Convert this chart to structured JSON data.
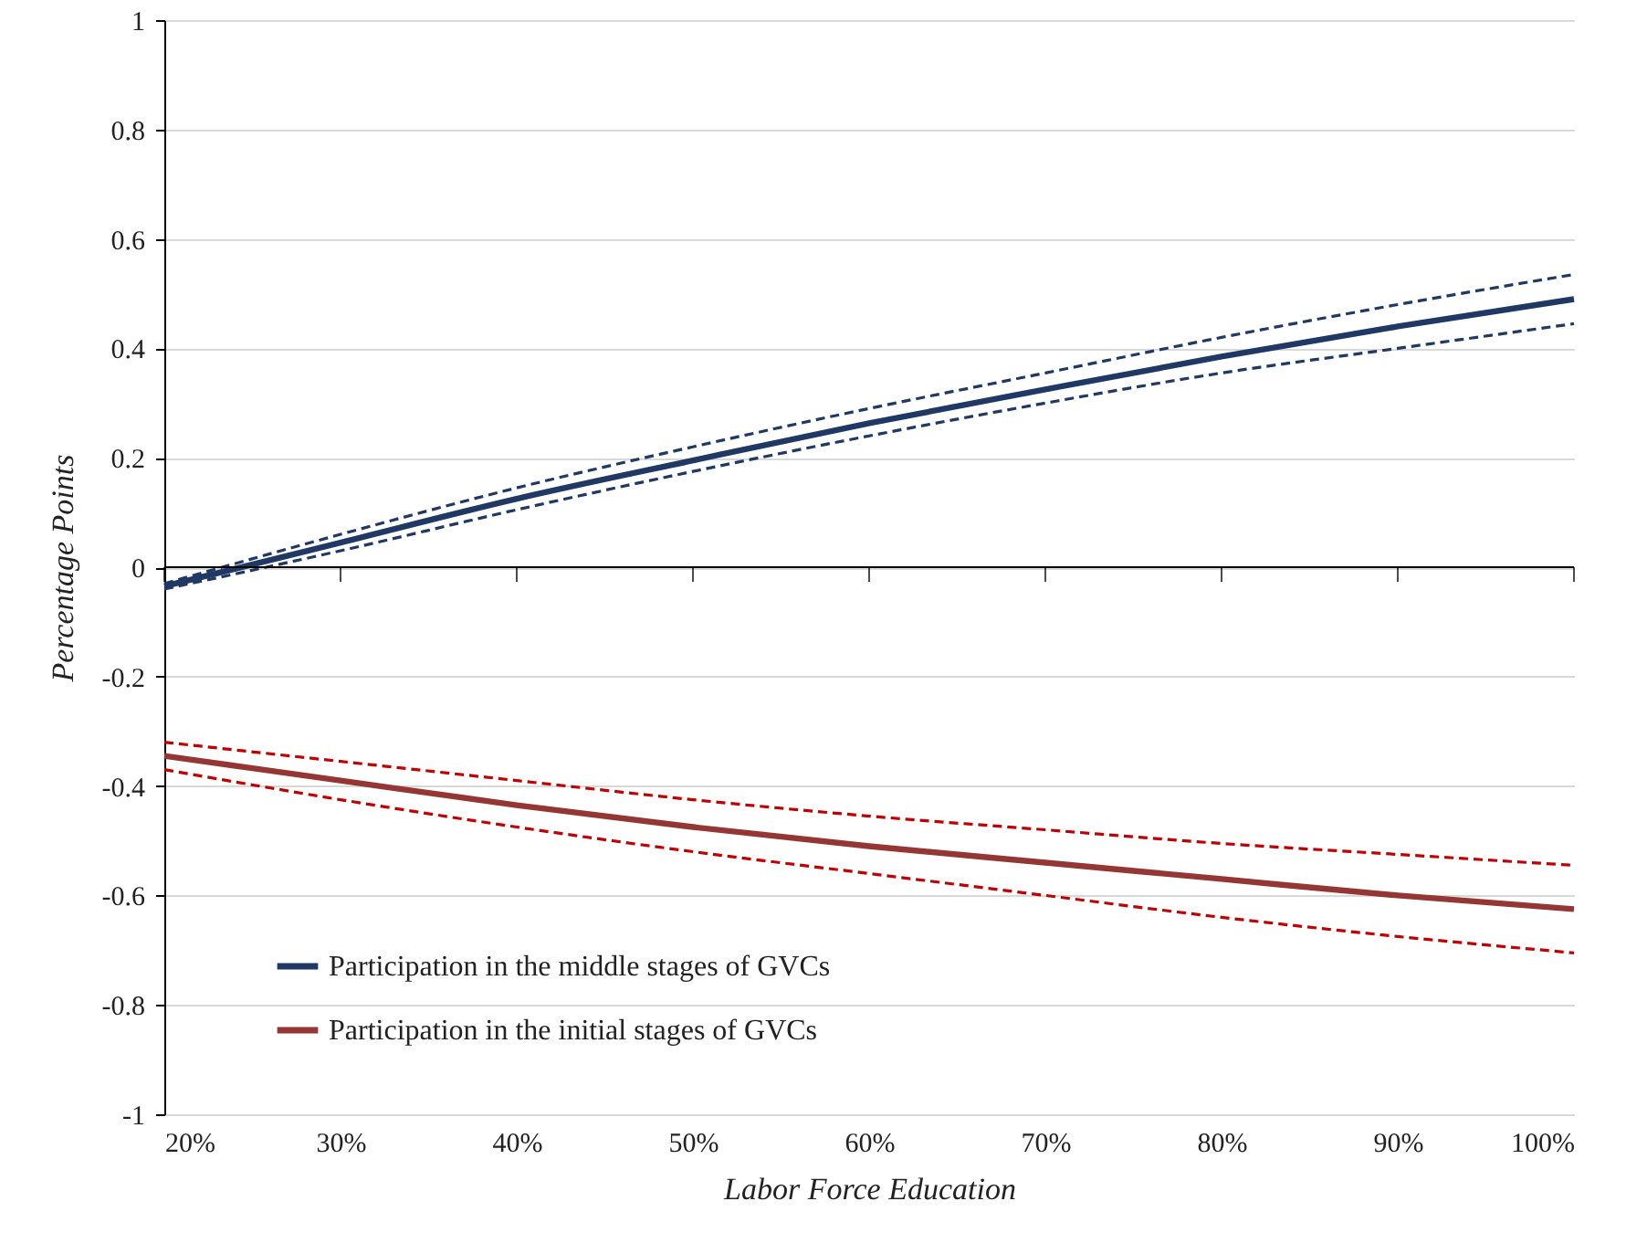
{
  "chart_data": {
    "type": "line",
    "xlabel": "Labor Force Education",
    "ylabel": "Percentage Points",
    "x": [
      20,
      30,
      40,
      50,
      60,
      70,
      80,
      90,
      100
    ],
    "series": [
      {
        "name": "Participation in the middle stages of GVCs",
        "color": "#1f3864",
        "line_style": "solid",
        "values": [
          -0.035,
          0.045,
          0.125,
          0.195,
          0.263,
          0.325,
          0.385,
          0.44,
          0.49
        ]
      },
      {
        "color": "#1f3864",
        "line_style": "dashed",
        "values": [
          -0.03,
          0.06,
          0.145,
          0.22,
          0.29,
          0.355,
          0.42,
          0.48,
          0.535
        ]
      },
      {
        "color": "#1f3864",
        "line_style": "dashed",
        "values": [
          -0.04,
          0.03,
          0.105,
          0.175,
          0.24,
          0.3,
          0.355,
          0.4,
          0.445
        ]
      },
      {
        "name": "Participation in the initial stages of GVCs",
        "color": "#943634",
        "line_style": "solid",
        "values": [
          -0.345,
          -0.39,
          -0.435,
          -0.475,
          -0.51,
          -0.54,
          -0.57,
          -0.6,
          -0.625
        ]
      },
      {
        "color": "#c00000",
        "line_style": "dashed",
        "values": [
          -0.32,
          -0.355,
          -0.39,
          -0.425,
          -0.455,
          -0.48,
          -0.505,
          -0.525,
          -0.545
        ]
      },
      {
        "color": "#c00000",
        "line_style": "dashed",
        "values": [
          -0.37,
          -0.425,
          -0.475,
          -0.52,
          -0.56,
          -0.6,
          -0.64,
          -0.675,
          -0.705
        ]
      }
    ],
    "xlim": [
      20,
      100
    ],
    "xticks": [
      {
        "value": 20,
        "label": "20%"
      },
      {
        "value": 30,
        "label": "30%"
      },
      {
        "value": 40,
        "label": "40%"
      },
      {
        "value": 50,
        "label": "50%"
      },
      {
        "value": 60,
        "label": "60%"
      },
      {
        "value": 70,
        "label": "70%"
      },
      {
        "value": 80,
        "label": "80%"
      },
      {
        "value": 90,
        "label": "90%"
      },
      {
        "value": 100,
        "label": "100%"
      }
    ],
    "ylim": [
      -1,
      1
    ],
    "yticks": [
      -1,
      -0.8,
      -0.6,
      -0.4,
      -0.2,
      0,
      0.2,
      0.4,
      0.6,
      0.8,
      1
    ],
    "ref_lines": [
      {
        "axis": "y",
        "value": 0,
        "color": "#000000"
      }
    ],
    "grid": "y",
    "legend": "bottom left"
  }
}
